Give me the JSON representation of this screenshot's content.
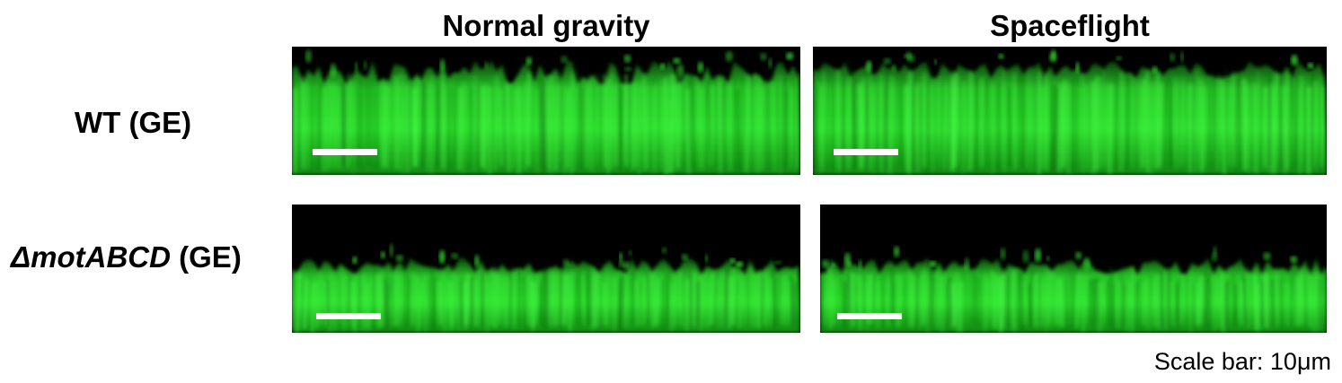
{
  "columns": {
    "normal": "Normal gravity",
    "space": "Spaceflight"
  },
  "rows": {
    "wt": {
      "label": "WT (GE)"
    },
    "mutant": {
      "gene": "ΔmotABCD",
      "suffix": " (GE)"
    }
  },
  "scale_note": "Scale bar: 10μm",
  "colors": {
    "fluorescence": "#22dd22",
    "background": "#000000",
    "scale_bar": "#ffffff"
  }
}
